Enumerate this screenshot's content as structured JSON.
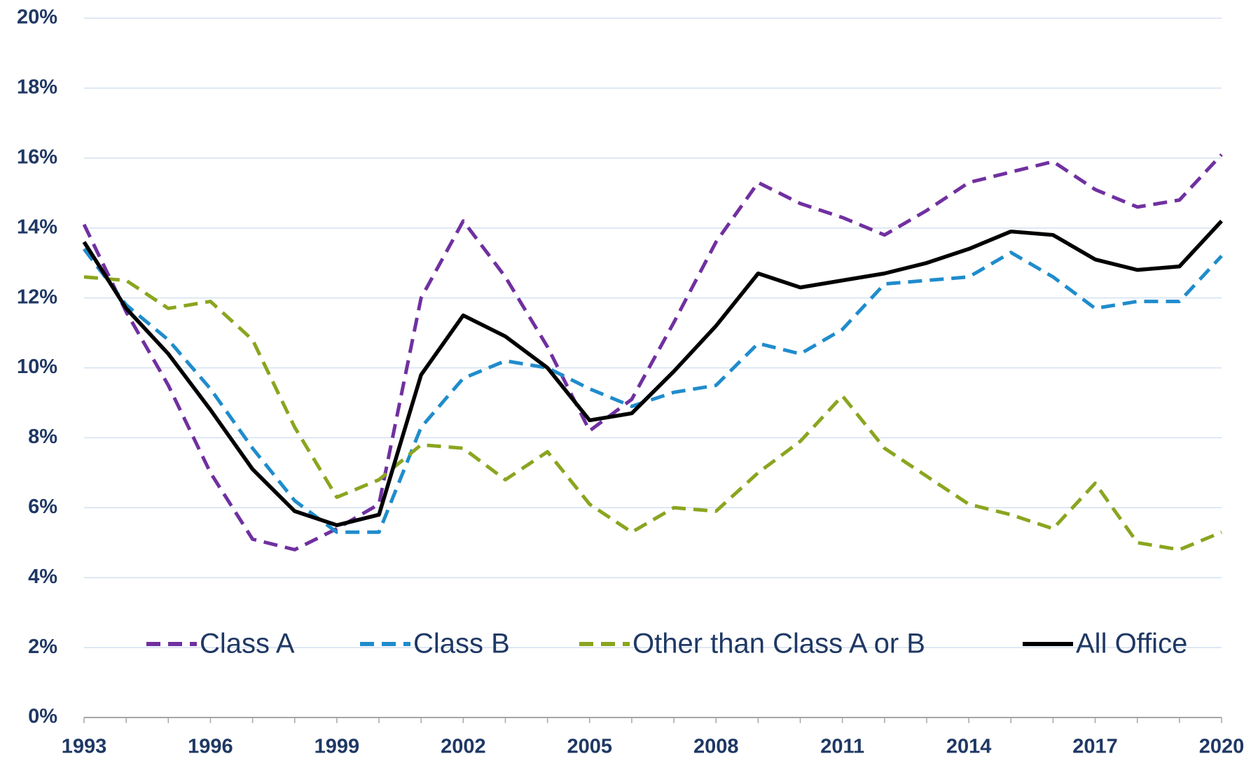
{
  "chart_data": {
    "type": "line",
    "x": [
      1993,
      1994,
      1995,
      1996,
      1997,
      1998,
      1999,
      2000,
      2001,
      2002,
      2003,
      2004,
      2005,
      2006,
      2007,
      2008,
      2009,
      2010,
      2011,
      2012,
      2013,
      2014,
      2015,
      2016,
      2017,
      2018,
      2019,
      2020
    ],
    "series": [
      {
        "name": "Class A",
        "color": "#7030a0",
        "dashed": true,
        "values": [
          14.1,
          11.6,
          9.5,
          7.0,
          5.1,
          4.8,
          5.4,
          6.1,
          12.0,
          14.2,
          12.6,
          10.6,
          8.2,
          9.1,
          11.3,
          13.6,
          15.3,
          14.7,
          14.3,
          13.8,
          14.5,
          15.3,
          15.6,
          15.9,
          15.1,
          14.6,
          14.8,
          16.1
        ]
      },
      {
        "name": "Class B",
        "color": "#1f8ccc",
        "dashed": true,
        "values": [
          13.4,
          11.8,
          10.8,
          9.4,
          7.7,
          6.2,
          5.3,
          5.3,
          8.3,
          9.7,
          10.2,
          10.0,
          9.4,
          8.9,
          9.3,
          9.5,
          10.7,
          10.4,
          11.1,
          12.4,
          12.5,
          12.6,
          13.3,
          12.6,
          11.7,
          11.9,
          11.9,
          13.2
        ]
      },
      {
        "name": "Other than Class A or B",
        "color": "#8aa51f",
        "dashed": true,
        "values": [
          12.6,
          12.5,
          11.7,
          11.9,
          10.8,
          8.3,
          6.3,
          6.8,
          7.8,
          7.7,
          6.8,
          7.6,
          6.1,
          5.3,
          6.0,
          5.9,
          7.0,
          7.9,
          9.2,
          7.7,
          6.9,
          6.1,
          5.8,
          5.4,
          6.7,
          5.0,
          4.8,
          5.3
        ]
      },
      {
        "name": "All Office",
        "color": "#000000",
        "dashed": false,
        "values": [
          13.6,
          11.7,
          10.4,
          8.8,
          7.1,
          5.9,
          5.5,
          5.8,
          9.8,
          11.5,
          10.9,
          10.0,
          8.5,
          8.7,
          9.9,
          11.2,
          12.7,
          12.3,
          12.5,
          12.7,
          13.0,
          13.4,
          13.9,
          13.8,
          13.1,
          12.8,
          12.9,
          14.2
        ]
      }
    ],
    "xlim": [
      1993,
      2020
    ],
    "xticks": [
      1993,
      1996,
      1999,
      2002,
      2005,
      2008,
      2011,
      2014,
      2017,
      2020
    ],
    "ylim": [
      0,
      20
    ],
    "yticks": [
      {
        "value": 0,
        "label": "0%"
      },
      {
        "value": 2,
        "label": "2%"
      },
      {
        "value": 4,
        "label": "4%"
      },
      {
        "value": 6,
        "label": "6%"
      },
      {
        "value": 8,
        "label": "8%"
      },
      {
        "value": 10,
        "label": "10%"
      },
      {
        "value": 12,
        "label": "12%"
      },
      {
        "value": 14,
        "label": "14%"
      },
      {
        "value": 16,
        "label": "16%"
      },
      {
        "value": 18,
        "label": "18%"
      },
      {
        "value": 20,
        "label": "20%"
      }
    ],
    "grid": true,
    "legend": "lower center"
  }
}
